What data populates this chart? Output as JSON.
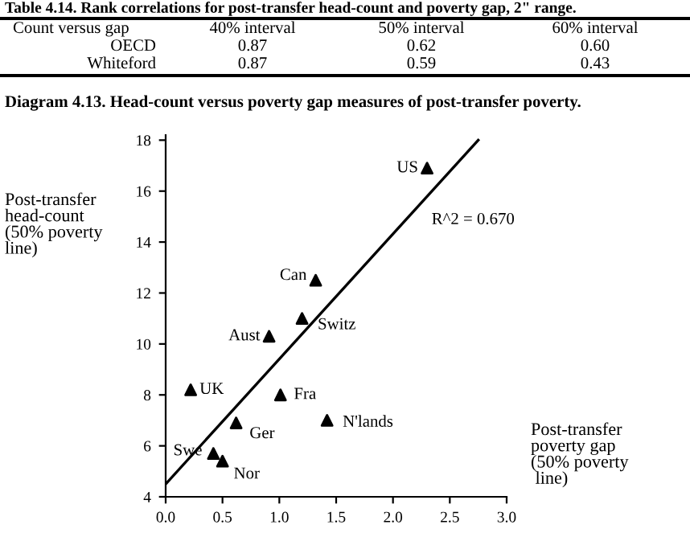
{
  "chart_data": {
    "type": "scatter",
    "title": "Diagram 4.13. Head-count versus poverty gap measures of post-transfer poverty.",
    "xlabel": "Post-transfer\npoverty gap\n(50% poverty\n line)",
    "ylabel": "Post-transfer\nhead-count\n(50% poverty\nline)",
    "series": [
      {
        "color": "#000000",
        "marker": "triangle",
        "x": [
          2.3,
          1.32,
          1.2,
          0.91,
          0.22,
          1.01,
          0.62,
          1.42,
          0.42,
          0.5
        ],
        "values": [
          16.9,
          12.5,
          11.0,
          10.3,
          8.2,
          8.0,
          6.9,
          7.0,
          5.7,
          5.4
        ]
      },
      {
        "type": "line",
        "color": "#000000",
        "marker": "none",
        "line_style": "solid",
        "x": [
          0,
          2.75
        ],
        "values": [
          4.5,
          18
        ]
      }
    ],
    "annotations": [
      "Table 4.14. Rank correlations for post-transfer head-count and poverty gap, 2\" range.",
      "Count versus gap",
      "40% interval",
      "50% interval",
      "60% interval",
      "OECD",
      "0.87",
      "0.62",
      "0.60",
      "Whiteford",
      "0.87",
      "0.59",
      "0.43",
      {
        "text": "US",
        "x": 2.3,
        "y": 16.9
      },
      {
        "text": "Can",
        "x": 1.32,
        "y": 12.5
      },
      {
        "text": "Switz",
        "x": 1.2,
        "y": 11.0
      },
      {
        "text": "Aust",
        "x": 0.91,
        "y": 10.3
      },
      {
        "text": "UK",
        "x": 0.22,
        "y": 8.2
      },
      {
        "text": "Fra",
        "x": 1.01,
        "y": 8.0
      },
      {
        "text": "Ger",
        "x": 0.62,
        "y": 6.9
      },
      {
        "text": "N'lands",
        "x": 1.42,
        "y": 7.0
      },
      {
        "text": "Swe",
        "x": 0.42,
        "y": 5.7
      },
      {
        "text": "Nor",
        "x": 0.5,
        "y": 5.4
      },
      "R^2 = 0.670"
    ],
    "xlim": [
      0,
      3
    ],
    "ylim": [
      4,
      18.2
    ],
    "xticks": [
      {
        "value": 0,
        "label": "0.0"
      },
      {
        "value": 0.5,
        "label": "0.5"
      },
      {
        "value": 1,
        "label": "1.0"
      },
      {
        "value": 1.5,
        "label": "1.5"
      },
      {
        "value": 2,
        "label": "2.0"
      },
      {
        "value": 2.5,
        "label": "2.5"
      },
      {
        "value": 3,
        "label": "3.0"
      }
    ],
    "yticks": [
      4,
      6,
      8,
      10,
      12,
      14,
      16,
      18
    ],
    "grid": false,
    "legend": false
  }
}
